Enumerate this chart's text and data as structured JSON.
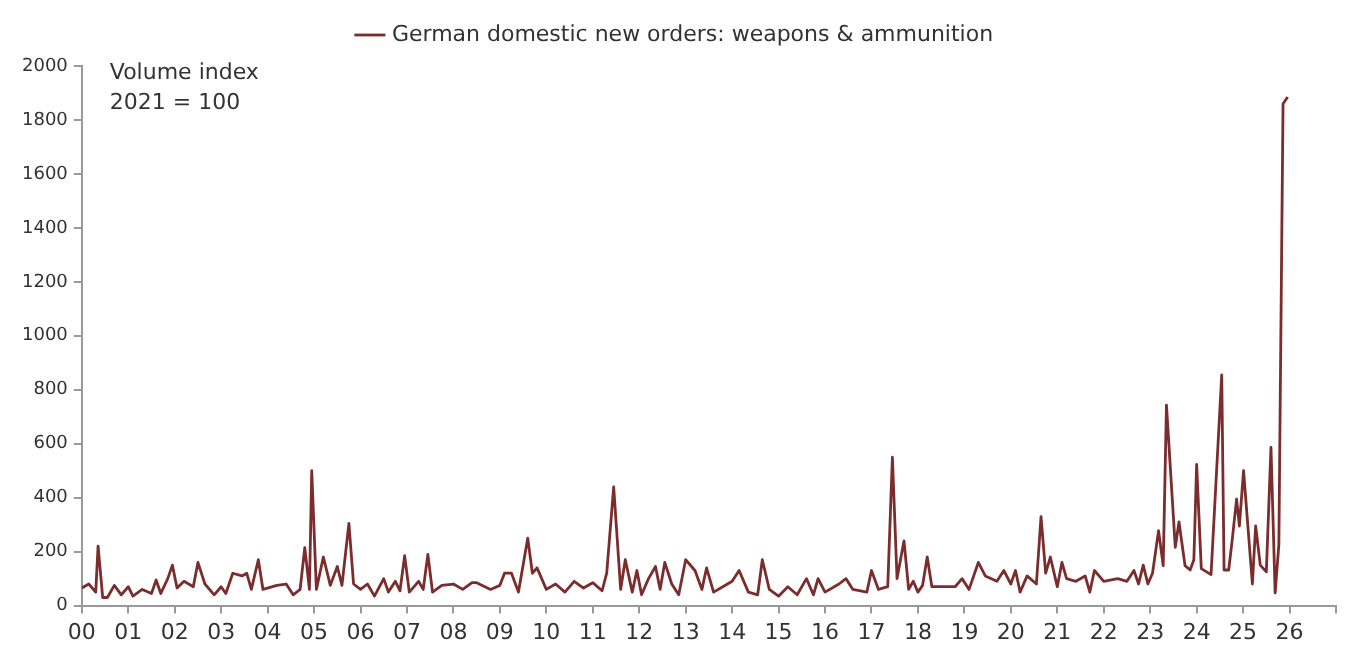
{
  "chart_data": {
    "type": "line",
    "ylabel": "Volume index",
    "annotations": [
      "2021 = 100"
    ],
    "xlim": [
      2000,
      2027
    ],
    "xticks": [
      {
        "value": 2000,
        "label": "00"
      },
      {
        "value": 2001,
        "label": "01"
      },
      {
        "value": 2002,
        "label": "02"
      },
      {
        "value": 2003,
        "label": "03"
      },
      {
        "value": 2004,
        "label": "04"
      },
      {
        "value": 2005,
        "label": "05"
      },
      {
        "value": 2006,
        "label": "06"
      },
      {
        "value": 2007,
        "label": "07"
      },
      {
        "value": 2008,
        "label": "08"
      },
      {
        "value": 2009,
        "label": "09"
      },
      {
        "value": 2010,
        "label": "10"
      },
      {
        "value": 2011,
        "label": "11"
      },
      {
        "value": 2012,
        "label": "12"
      },
      {
        "value": 2013,
        "label": "13"
      },
      {
        "value": 2014,
        "label": "14"
      },
      {
        "value": 2015,
        "label": "15"
      },
      {
        "value": 2016,
        "label": "16"
      },
      {
        "value": 2017,
        "label": "17"
      },
      {
        "value": 2018,
        "label": "18"
      },
      {
        "value": 2019,
        "label": "19"
      },
      {
        "value": 2020,
        "label": "20"
      },
      {
        "value": 2021,
        "label": "21"
      },
      {
        "value": 2022,
        "label": "22"
      },
      {
        "value": 2023,
        "label": "23"
      },
      {
        "value": 2024,
        "label": "24"
      },
      {
        "value": 2025,
        "label": "25"
      },
      {
        "value": 2026,
        "label": "26"
      },
      {
        "value": 2027,
        "label": null
      }
    ],
    "ylim": [
      0,
      2000
    ],
    "yticks": [
      0,
      200,
      400,
      600,
      800,
      1000,
      1200,
      1400,
      1600,
      1800,
      2000
    ],
    "grid": false,
    "legend": "top",
    "marker": "none",
    "line_style": "solid",
    "series": [
      {
        "name": "German domestic new orders: weapons & ammunition",
        "color": "#7b2d2d",
        "x": [
          2000.0,
          2000.15,
          2000.3,
          2000.35,
          2000.45,
          2000.55,
          2000.7,
          2000.85,
          2001.0,
          2001.1,
          2001.3,
          2001.5,
          2001.6,
          2001.7,
          2001.85,
          2001.95,
          2002.05,
          2002.2,
          2002.4,
          2002.5,
          2002.65,
          2002.85,
          2003.0,
          2003.1,
          2003.25,
          2003.45,
          2003.55,
          2003.65,
          2003.8,
          2003.9,
          2004.2,
          2004.4,
          2004.55,
          2004.7,
          2004.8,
          2004.9,
          2004.95,
          2005.05,
          2005.2,
          2005.35,
          2005.5,
          2005.6,
          2005.75,
          2005.85,
          2006.0,
          2006.15,
          2006.3,
          2006.5,
          2006.6,
          2006.75,
          2006.85,
          2006.95,
          2007.05,
          2007.25,
          2007.35,
          2007.45,
          2007.55,
          2007.75,
          2008.0,
          2008.2,
          2008.4,
          2008.5,
          2008.8,
          2009.0,
          2009.1,
          2009.25,
          2009.4,
          2009.6,
          2009.7,
          2009.8,
          2010.0,
          2010.2,
          2010.4,
          2010.6,
          2010.8,
          2011.0,
          2011.2,
          2011.3,
          2011.45,
          2011.6,
          2011.7,
          2011.85,
          2011.95,
          2012.05,
          2012.2,
          2012.35,
          2012.45,
          2012.55,
          2012.7,
          2012.85,
          2013.0,
          2013.2,
          2013.35,
          2013.45,
          2013.6,
          2013.8,
          2014.0,
          2014.15,
          2014.35,
          2014.55,
          2014.65,
          2014.8,
          2015.0,
          2015.2,
          2015.4,
          2015.6,
          2015.75,
          2015.85,
          2016.0,
          2016.3,
          2016.45,
          2016.6,
          2016.9,
          2017.0,
          2017.15,
          2017.35,
          2017.45,
          2017.55,
          2017.7,
          2017.8,
          2017.9,
          2018.0,
          2018.1,
          2018.2,
          2018.3,
          2018.8,
          2018.95,
          2019.1,
          2019.3,
          2019.45,
          2019.7,
          2019.85,
          2020.0,
          2020.1,
          2020.2,
          2020.35,
          2020.55,
          2020.65,
          2020.75,
          2020.85,
          2021.0,
          2021.1,
          2021.2,
          2021.4,
          2021.6,
          2021.7,
          2021.8,
          2022.0,
          2022.3,
          2022.5,
          2022.65,
          2022.75,
          2022.85,
          2022.95,
          2023.05,
          2023.18,
          2023.28,
          2023.35,
          2023.54,
          2023.62,
          2023.75,
          2023.86,
          2023.94,
          2024.0,
          2024.1,
          2024.31,
          2024.54,
          2024.59,
          2024.69,
          2024.77,
          2024.86,
          2024.92,
          2025.01,
          2025.2,
          2025.27,
          2025.37,
          2025.5,
          2025.6,
          2025.69,
          2025.77,
          2025.86,
          2025.96
        ],
        "values": [
          65,
          80,
          50,
          220,
          30,
          30,
          75,
          40,
          70,
          35,
          60,
          45,
          95,
          45,
          100,
          150,
          65,
          90,
          70,
          160,
          80,
          40,
          70,
          45,
          120,
          110,
          120,
          60,
          170,
          60,
          75,
          80,
          40,
          60,
          215,
          60,
          500,
          60,
          180,
          75,
          145,
          75,
          305,
          80,
          60,
          80,
          35,
          100,
          50,
          90,
          55,
          185,
          50,
          90,
          60,
          190,
          50,
          75,
          80,
          60,
          85,
          85,
          60,
          75,
          120,
          120,
          50,
          250,
          120,
          140,
          60,
          80,
          50,
          90,
          65,
          85,
          55,
          120,
          440,
          60,
          170,
          50,
          130,
          40,
          100,
          145,
          60,
          160,
          80,
          40,
          170,
          130,
          60,
          140,
          50,
          70,
          90,
          130,
          50,
          40,
          170,
          60,
          35,
          70,
          40,
          100,
          40,
          100,
          50,
          80,
          100,
          60,
          50,
          130,
          60,
          70,
          550,
          100,
          240,
          60,
          90,
          50,
          75,
          180,
          70,
          70,
          100,
          60,
          160,
          110,
          90,
          130,
          80,
          130,
          50,
          110,
          80,
          330,
          120,
          180,
          70,
          160,
          100,
          90,
          110,
          50,
          130,
          90,
          100,
          90,
          130,
          80,
          150,
          80,
          120,
          278,
          148,
          743,
          216,
          310,
          148,
          132,
          170,
          523,
          137,
          115,
          855,
          132,
          132,
          250,
          395,
          295,
          500,
          80,
          295,
          150,
          125,
          586,
          47,
          227,
          1860,
          1885
        ]
      }
    ]
  }
}
